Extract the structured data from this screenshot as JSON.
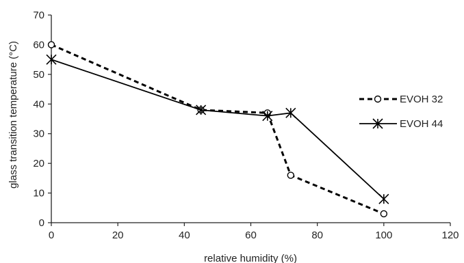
{
  "chart_data": {
    "type": "line",
    "xlabel": "relative humidity (%)",
    "ylabel": "glass transition temperature (°C)",
    "xlim": [
      0,
      120
    ],
    "ylim": [
      0,
      70
    ],
    "xticks": [
      "0",
      "20",
      "40",
      "60",
      "80",
      "100",
      "120"
    ],
    "yticks": [
      "0",
      "10",
      "20",
      "30",
      "40",
      "50",
      "60",
      "70"
    ],
    "grid": false,
    "legend_position": "right",
    "series": [
      {
        "name": "EVOH 32",
        "line_style": "dashed",
        "marker": "circle",
        "x": [
          0,
          45,
          65,
          72,
          100
        ],
        "y": [
          60,
          38,
          37,
          16,
          3
        ]
      },
      {
        "name": "EVOH 44",
        "line_style": "solid",
        "marker": "star",
        "x": [
          0,
          45,
          65,
          72,
          100
        ],
        "y": [
          55,
          38,
          36,
          37,
          8
        ]
      }
    ]
  }
}
